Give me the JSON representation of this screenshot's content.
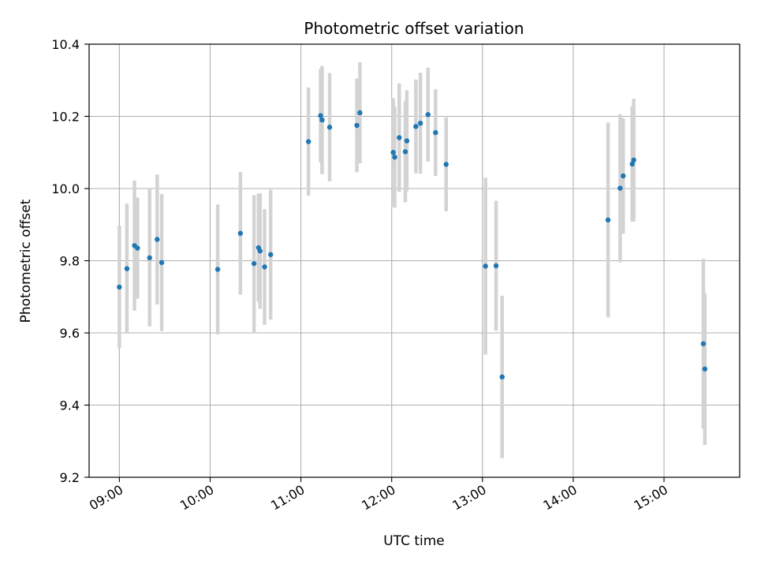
{
  "chart_data": {
    "type": "scatter",
    "title": "Photometric offset variation",
    "xlabel": "UTC time",
    "ylabel": "Photometric offset",
    "x_type": "time",
    "xlim": [
      "08:40",
      "15:50"
    ],
    "ylim": [
      9.2,
      10.4
    ],
    "x_ticks": [
      "09:00",
      "10:00",
      "11:00",
      "12:00",
      "13:00",
      "14:00",
      "15:00"
    ],
    "y_ticks": [
      "9.2",
      "9.4",
      "9.6",
      "9.8",
      "10.0",
      "10.2",
      "10.4"
    ],
    "y_tick_values": [
      9.2,
      9.4,
      9.6,
      9.8,
      10.0,
      10.2,
      10.4
    ],
    "grid": true,
    "colors": {
      "point": "#1f77b4",
      "errorbar": "#d3d3d3",
      "grid": "#b0b0b0"
    },
    "points": [
      {
        "x": "09:00",
        "y": 9.727,
        "err": 0.17
      },
      {
        "x": "09:05",
        "y": 9.778,
        "err": 0.18
      },
      {
        "x": "09:10",
        "y": 9.842,
        "err": 0.18
      },
      {
        "x": "09:12",
        "y": 9.835,
        "err": 0.14
      },
      {
        "x": "09:20",
        "y": 9.808,
        "err": 0.19
      },
      {
        "x": "09:25",
        "y": 9.859,
        "err": 0.18
      },
      {
        "x": "09:28",
        "y": 9.795,
        "err": 0.19
      },
      {
        "x": "10:05",
        "y": 9.776,
        "err": 0.18
      },
      {
        "x": "10:20",
        "y": 9.876,
        "err": 0.17
      },
      {
        "x": "10:29",
        "y": 9.792,
        "err": 0.19
      },
      {
        "x": "10:32",
        "y": 9.836,
        "err": 0.15
      },
      {
        "x": "10:33",
        "y": 9.827,
        "err": 0.16
      },
      {
        "x": "10:36",
        "y": 9.783,
        "err": 0.16
      },
      {
        "x": "10:40",
        "y": 9.817,
        "err": 0.18
      },
      {
        "x": "11:05",
        "y": 10.13,
        "err": 0.15
      },
      {
        "x": "11:13",
        "y": 10.202,
        "err": 0.13
      },
      {
        "x": "11:14",
        "y": 10.19,
        "err": 0.15
      },
      {
        "x": "11:19",
        "y": 10.17,
        "err": 0.15
      },
      {
        "x": "11:37",
        "y": 10.175,
        "err": 0.13
      },
      {
        "x": "11:39",
        "y": 10.21,
        "err": 0.14
      },
      {
        "x": "12:01",
        "y": 10.1,
        "err": 0.15
      },
      {
        "x": "12:02",
        "y": 10.087,
        "err": 0.14
      },
      {
        "x": "12:05",
        "y": 10.141,
        "err": 0.15
      },
      {
        "x": "12:09",
        "y": 10.102,
        "err": 0.14
      },
      {
        "x": "12:10",
        "y": 10.132,
        "err": 0.14
      },
      {
        "x": "12:16",
        "y": 10.172,
        "err": 0.13
      },
      {
        "x": "12:19",
        "y": 10.181,
        "err": 0.14
      },
      {
        "x": "12:24",
        "y": 10.205,
        "err": 0.13
      },
      {
        "x": "12:29",
        "y": 10.155,
        "err": 0.12
      },
      {
        "x": "12:36",
        "y": 10.067,
        "err": 0.13
      },
      {
        "x": "13:02",
        "y": 9.785,
        "err": 0.245
      },
      {
        "x": "13:09",
        "y": 9.786,
        "err": 0.18
      },
      {
        "x": "13:13",
        "y": 9.478,
        "err": 0.225
      },
      {
        "x": "14:23",
        "y": 9.913,
        "err": 0.27
      },
      {
        "x": "14:31",
        "y": 10.001,
        "err": 0.205
      },
      {
        "x": "14:33",
        "y": 10.035,
        "err": 0.16
      },
      {
        "x": "14:39",
        "y": 10.068,
        "err": 0.16
      },
      {
        "x": "14:40",
        "y": 10.079,
        "err": 0.17
      },
      {
        "x": "15:26",
        "y": 9.57,
        "err": 0.235
      },
      {
        "x": "15:27",
        "y": 9.5,
        "err": 0.21
      }
    ]
  }
}
